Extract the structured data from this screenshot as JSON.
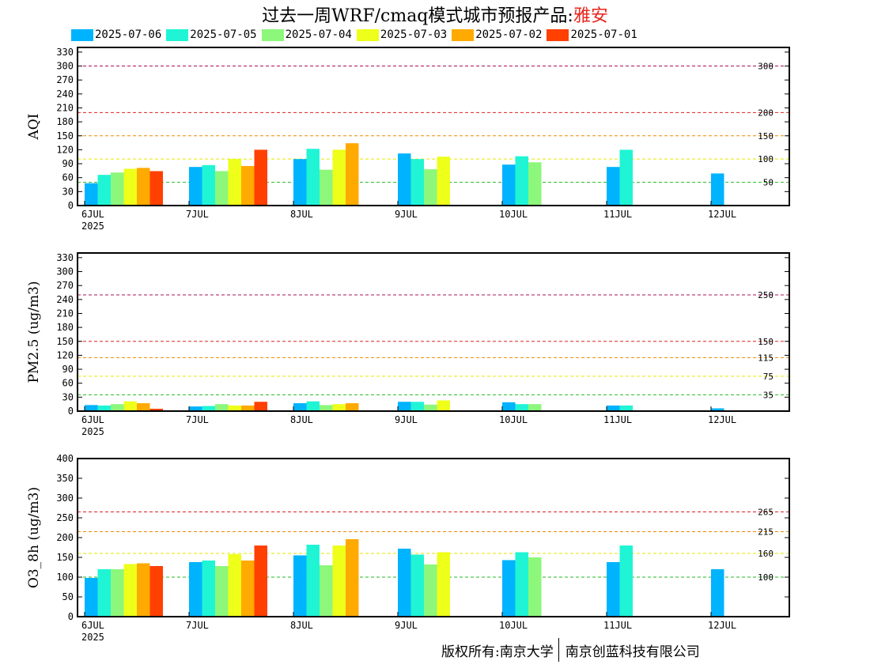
{
  "title": {
    "prefix": "过去一周WRF/cmaq模式城市预报产品:",
    "city": "雅安"
  },
  "footer": {
    "left": "版权所有:南京大学",
    "right": "南京创蓝科技有限公司"
  },
  "legend": [
    {
      "label": "2025-07-06",
      "color": "#00b3ff"
    },
    {
      "label": "2025-07-05",
      "color": "#1ff5d5"
    },
    {
      "label": "2025-07-04",
      "color": "#8cf77a"
    },
    {
      "label": "2025-07-03",
      "color": "#eeff1a"
    },
    {
      "label": "2025-07-02",
      "color": "#ffaa00"
    },
    {
      "label": "2025-07-01",
      "color": "#ff4000"
    }
  ],
  "chart_data": [
    {
      "type": "bar",
      "ylabel": "AQI",
      "ylim": [
        0,
        340
      ],
      "yticks": [
        0,
        30,
        60,
        90,
        120,
        150,
        180,
        210,
        240,
        270,
        300,
        330
      ],
      "categories": [
        "6JUL",
        "7JUL",
        "8JUL",
        "9JUL",
        "10JUL",
        "11JUL",
        "12JUL"
      ],
      "year_label": "2025",
      "thresholds": [
        {
          "value": 50,
          "label": "50",
          "color": "#22bb22"
        },
        {
          "value": 100,
          "label": "100",
          "color": "#e6e600"
        },
        {
          "value": 150,
          "label": "150",
          "color": "#ee8800"
        },
        {
          "value": 200,
          "label": "200",
          "color": "#dd2222"
        },
        {
          "value": 300,
          "label": "300",
          "color": "#aa1155"
        }
      ],
      "series": [
        {
          "name": "2025-07-06",
          "values": [
            48,
            83,
            100,
            112,
            88,
            83,
            69
          ]
        },
        {
          "name": "2025-07-05",
          "values": [
            66,
            87,
            122,
            100,
            106,
            120,
            null
          ]
        },
        {
          "name": "2025-07-04",
          "values": [
            71,
            74,
            77,
            78,
            93,
            null,
            null
          ]
        },
        {
          "name": "2025-07-03",
          "values": [
            79,
            100,
            120,
            105,
            null,
            null,
            null
          ]
        },
        {
          "name": "2025-07-02",
          "values": [
            81,
            85,
            134,
            null,
            null,
            null,
            null
          ]
        },
        {
          "name": "2025-07-01",
          "values": [
            74,
            120,
            null,
            null,
            null,
            null,
            null
          ]
        }
      ]
    },
    {
      "type": "bar",
      "ylabel": "PM2.5 (ug/m3)",
      "ylim": [
        0,
        340
      ],
      "yticks": [
        0,
        30,
        60,
        90,
        120,
        150,
        180,
        210,
        240,
        270,
        300,
        330
      ],
      "categories": [
        "6JUL",
        "7JUL",
        "8JUL",
        "9JUL",
        "10JUL",
        "11JUL",
        "12JUL"
      ],
      "year_label": "2025",
      "thresholds": [
        {
          "value": 35,
          "label": "35",
          "color": "#22bb22"
        },
        {
          "value": 75,
          "label": "75",
          "color": "#e6e600"
        },
        {
          "value": 115,
          "label": "115",
          "color": "#ee8800"
        },
        {
          "value": 150,
          "label": "150",
          "color": "#dd2222"
        },
        {
          "value": 250,
          "label": "250",
          "color": "#aa1155"
        }
      ],
      "series": [
        {
          "name": "2025-07-06",
          "values": [
            13,
            10,
            17,
            20,
            19,
            12,
            6
          ]
        },
        {
          "name": "2025-07-05",
          "values": [
            12,
            11,
            21,
            20,
            15,
            12,
            null
          ]
        },
        {
          "name": "2025-07-04",
          "values": [
            15,
            15,
            13,
            14,
            15,
            null,
            null
          ]
        },
        {
          "name": "2025-07-03",
          "values": [
            21,
            12,
            15,
            23,
            null,
            null,
            null
          ]
        },
        {
          "name": "2025-07-02",
          "values": [
            17,
            12,
            17,
            null,
            null,
            null,
            null
          ]
        },
        {
          "name": "2025-07-01",
          "values": [
            5,
            20,
            null,
            null,
            null,
            null,
            null
          ]
        }
      ]
    },
    {
      "type": "bar",
      "ylabel": "O3_8h (ug/m3)",
      "ylim": [
        0,
        400
      ],
      "yticks": [
        0,
        50,
        100,
        150,
        200,
        250,
        300,
        350,
        400
      ],
      "categories": [
        "6JUL",
        "7JUL",
        "8JUL",
        "9JUL",
        "10JUL",
        "11JUL",
        "12JUL"
      ],
      "year_label": "2025",
      "thresholds": [
        {
          "value": 100,
          "label": "100",
          "color": "#22bb22"
        },
        {
          "value": 160,
          "label": "160",
          "color": "#e6e600"
        },
        {
          "value": 215,
          "label": "215",
          "color": "#ee8800"
        },
        {
          "value": 265,
          "label": "265",
          "color": "#dd2222"
        }
      ],
      "series": [
        {
          "name": "2025-07-06",
          "values": [
            98,
            138,
            155,
            172,
            143,
            138,
            120
          ]
        },
        {
          "name": "2025-07-05",
          "values": [
            120,
            142,
            182,
            157,
            163,
            180,
            null
          ]
        },
        {
          "name": "2025-07-04",
          "values": [
            120,
            128,
            130,
            132,
            150,
            null,
            null
          ]
        },
        {
          "name": "2025-07-03",
          "values": [
            133,
            158,
            180,
            163,
            null,
            null,
            null
          ]
        },
        {
          "name": "2025-07-02",
          "values": [
            135,
            142,
            196,
            null,
            null,
            null,
            null
          ]
        },
        {
          "name": "2025-07-01",
          "values": [
            128,
            180,
            null,
            null,
            null,
            null,
            null
          ]
        }
      ]
    }
  ]
}
